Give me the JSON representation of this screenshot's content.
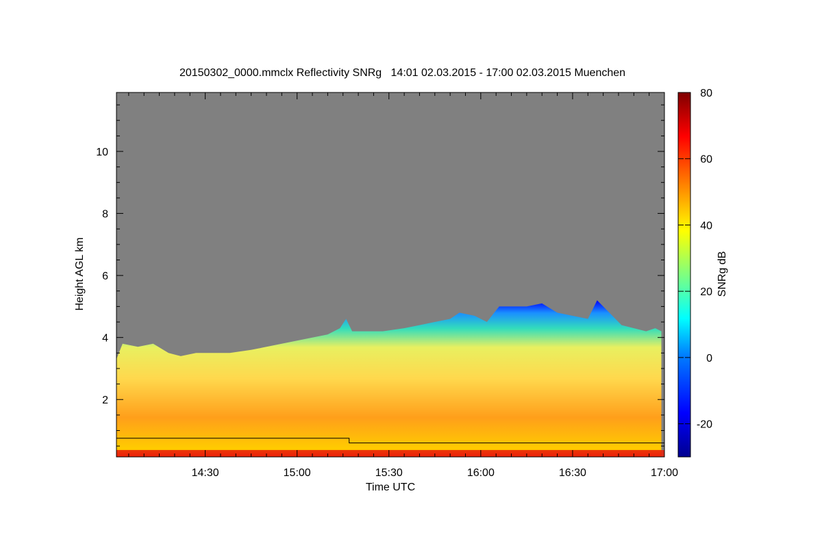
{
  "chart_data": {
    "type": "heatmap",
    "title": "20150302_0000.mmclx Reflectivity SNRg   14:01 02.03.2015 - 17:00 02.03.2015 Muenchen",
    "xlabel": "Time UTC",
    "ylabel": "Height AGL km",
    "colorbar_label": "SNRg dB",
    "x_tick_labels": [
      "14:30",
      "15:00",
      "15:30",
      "16:00",
      "16:30",
      "17:00"
    ],
    "x_tick_minutes_after_1400": [
      30,
      60,
      90,
      120,
      150,
      180
    ],
    "xlim_minutes_after_1400": [
      1,
      180
    ],
    "y_ticks": [
      2,
      4,
      6,
      8,
      10
    ],
    "ylim_km": [
      0.15,
      11.9
    ],
    "colorbar_ticks": [
      -20,
      0,
      20,
      40,
      60,
      80
    ],
    "colorbar_range_db": [
      -30,
      80
    ],
    "no_signal_color": "#808080",
    "colormap": [
      "#00008f",
      "#0000ff",
      "#007fff",
      "#00ffff",
      "#7fff7f",
      "#ffff00",
      "#ff7f00",
      "#ff0000",
      "#7f0000"
    ],
    "echo_top_km": [
      [
        1,
        3.3
      ],
      [
        3,
        3.8
      ],
      [
        8,
        3.7
      ],
      [
        13,
        3.8
      ],
      [
        18,
        3.5
      ],
      [
        22,
        3.4
      ],
      [
        27,
        3.5
      ],
      [
        32,
        3.5
      ],
      [
        38,
        3.5
      ],
      [
        45,
        3.6
      ],
      [
        50,
        3.7
      ],
      [
        55,
        3.8
      ],
      [
        60,
        3.9
      ],
      [
        65,
        4.0
      ],
      [
        70,
        4.1
      ],
      [
        74,
        4.3
      ],
      [
        76,
        4.6
      ],
      [
        78,
        4.2
      ],
      [
        82,
        4.2
      ],
      [
        88,
        4.2
      ],
      [
        95,
        4.3
      ],
      [
        100,
        4.4
      ],
      [
        105,
        4.5
      ],
      [
        110,
        4.6
      ],
      [
        113,
        4.8
      ],
      [
        118,
        4.7
      ],
      [
        122,
        4.5
      ],
      [
        126,
        5.0
      ],
      [
        130,
        5.0
      ],
      [
        135,
        5.0
      ],
      [
        140,
        5.1
      ],
      [
        145,
        4.8
      ],
      [
        150,
        4.7
      ],
      [
        155,
        4.6
      ],
      [
        158,
        5.2
      ],
      [
        162,
        4.8
      ],
      [
        166,
        4.4
      ],
      [
        170,
        4.3
      ],
      [
        174,
        4.2
      ],
      [
        177,
        4.3
      ],
      [
        179,
        4.2
      ]
    ],
    "boundary_line_km": [
      [
        1,
        0.75
      ],
      [
        77,
        0.75
      ],
      [
        77,
        0.6
      ],
      [
        180,
        0.6
      ]
    ]
  }
}
